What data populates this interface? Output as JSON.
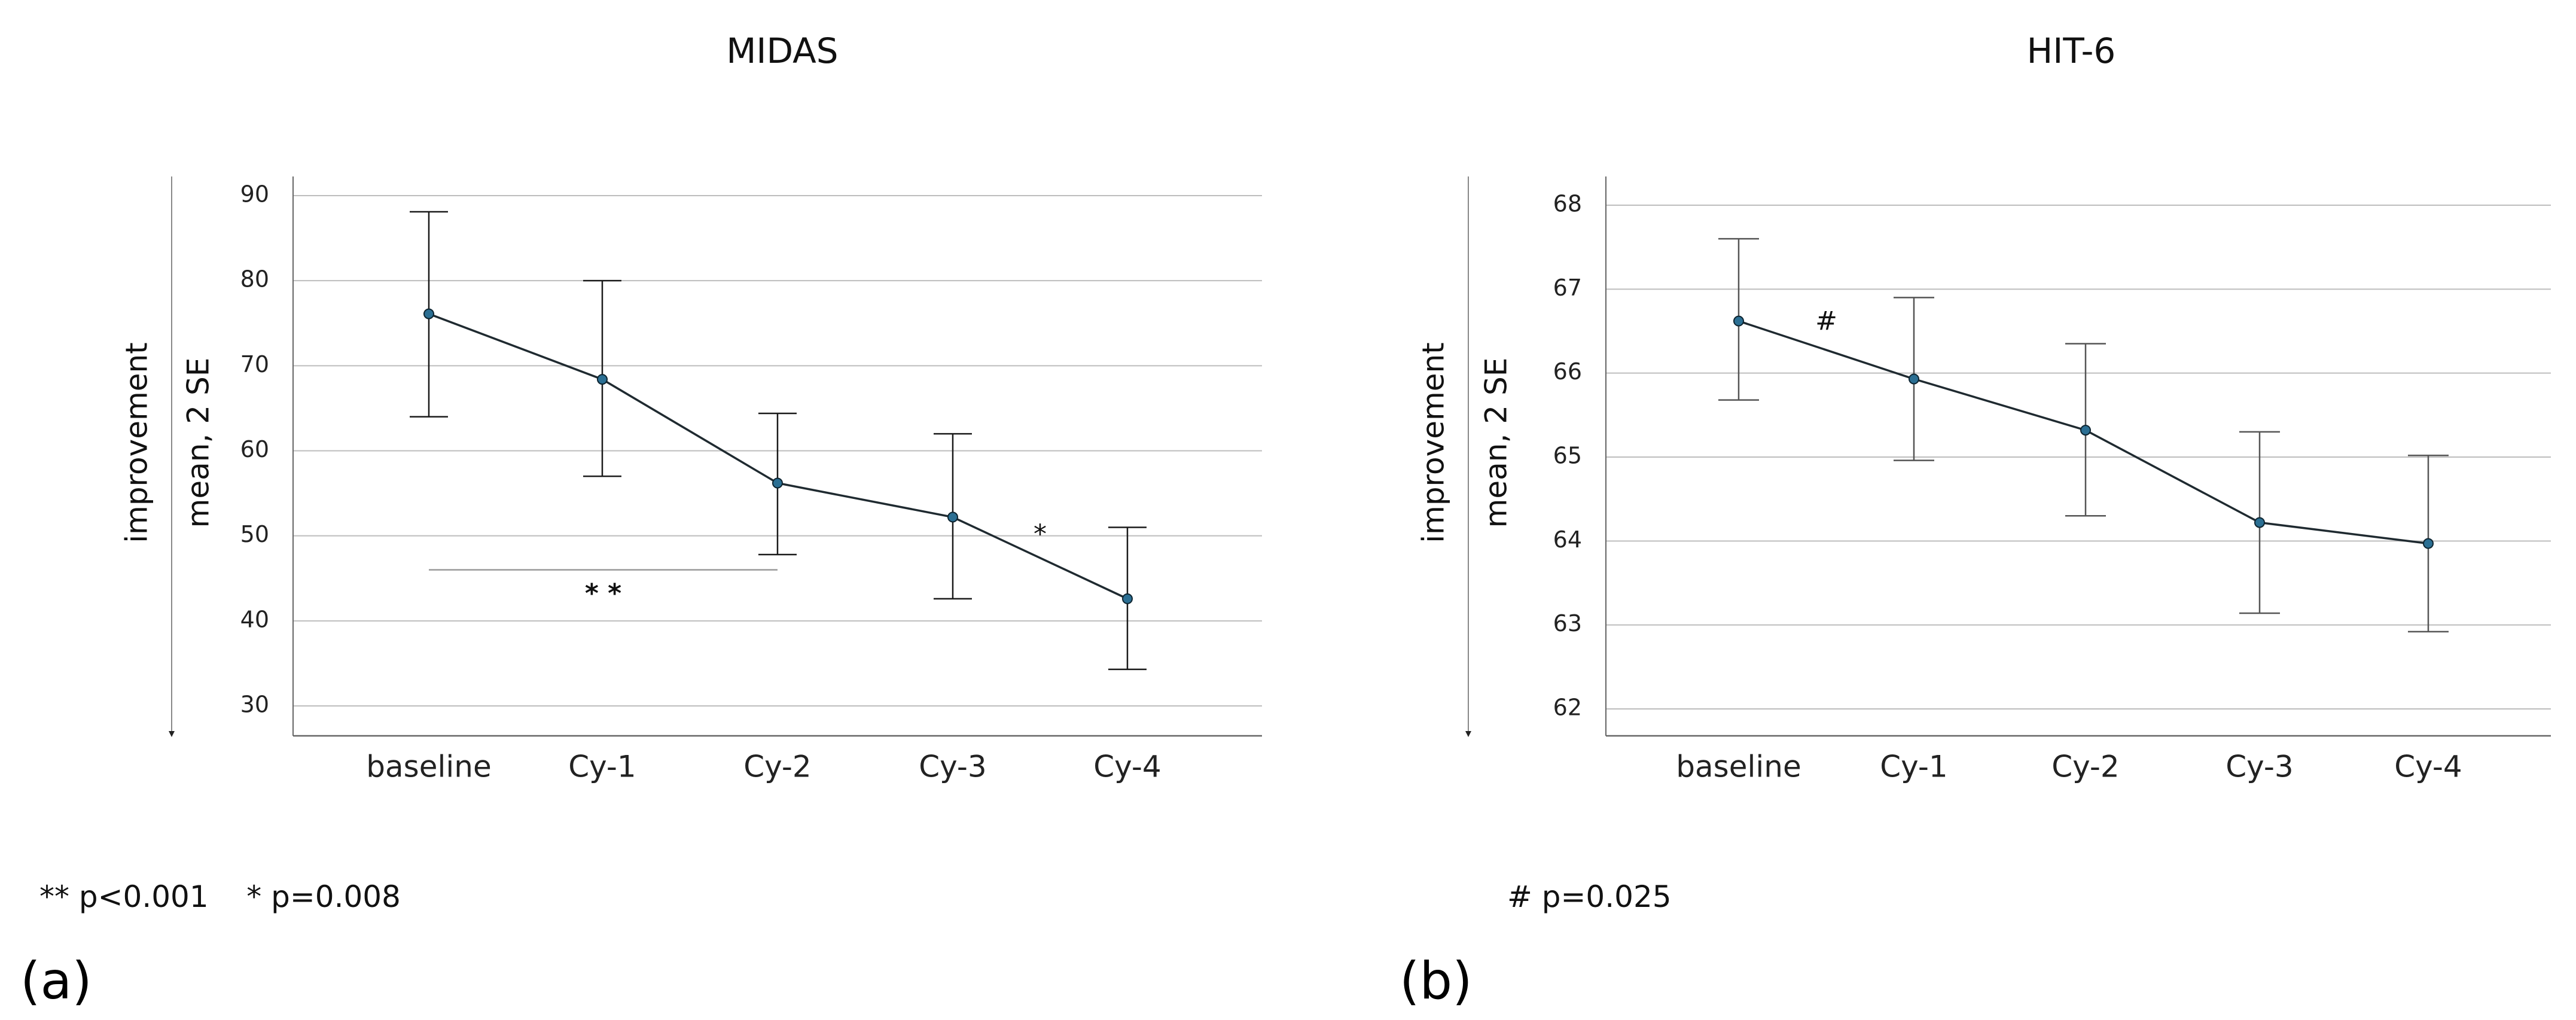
{
  "chart_data": [
    {
      "type": "line",
      "title": "MIDAS",
      "ylabel_line1": "improvement",
      "ylabel_line2": "mean,  2 SE",
      "categories": [
        "baseline",
        "Cy-1",
        "Cy-2",
        "Cy-3",
        "Cy-4"
      ],
      "yticks": [
        30,
        40,
        50,
        60,
        70,
        80,
        90
      ],
      "ylim": [
        27,
        92
      ],
      "series": [
        {
          "name": "MIDAS",
          "values": [
            76.1,
            68.4,
            56.2,
            52.2,
            42.6
          ],
          "err_low": [
            64.0,
            57.0,
            47.8,
            42.6,
            34.3
          ],
          "err_high": [
            88.1,
            80.0,
            64.4,
            62.0,
            51.0
          ]
        }
      ],
      "annotations": [
        {
          "text": "* *",
          "type": "bracket",
          "from": "baseline",
          "to": "Cy-2",
          "y": 46.0
        },
        {
          "text": "*",
          "type": "label",
          "between": [
            "Cy-3",
            "Cy-4"
          ],
          "y": 50.0
        }
      ],
      "footnote": "** p<0.001    * p=0.008",
      "panel_label": "(a)"
    },
    {
      "type": "line",
      "title": "HIT-6",
      "ylabel_line1": "improvement",
      "ylabel_line2": "mean,  2 SE",
      "categories": [
        "baseline",
        "Cy-1",
        "Cy-2",
        "Cy-3",
        "Cy-4"
      ],
      "yticks": [
        62,
        63,
        64,
        65,
        66,
        67,
        68
      ],
      "ylim": [
        61.7,
        68.2
      ],
      "series": [
        {
          "name": "HIT-6",
          "values": [
            66.62,
            65.93,
            65.32,
            64.22,
            63.97
          ],
          "err_low": [
            65.68,
            64.96,
            64.3,
            63.14,
            62.92
          ],
          "err_high": [
            67.6,
            66.9,
            66.35,
            65.3,
            65.02
          ]
        }
      ],
      "annotations": [
        {
          "text": "#",
          "type": "label",
          "between": [
            "baseline",
            "Cy-1"
          ],
          "y": 66.6
        }
      ],
      "footnote": "# p=0.025",
      "panel_label": "(b)"
    }
  ]
}
